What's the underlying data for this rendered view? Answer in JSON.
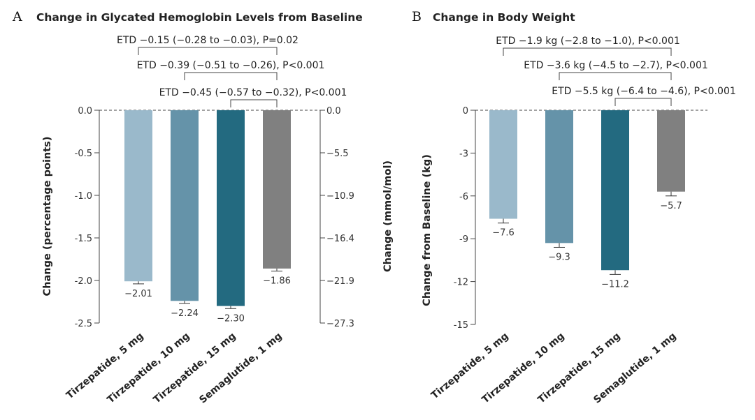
{
  "chart_data": [
    {
      "type": "bar",
      "panel_letter": "A",
      "title": "Change in Glycated Hemoglobin Levels from Baseline",
      "ylabel": "Change (percentage points)",
      "ylabel_right": "Change (mmol/mol)",
      "ylim": [
        -2.5,
        0.0
      ],
      "yticks": [
        "0.0",
        "-0.5",
        "-1.0",
        "-1.5",
        "-2.0",
        "-2.5"
      ],
      "yticks_right": [
        "0.0",
        "−5.5",
        "−10.9",
        "−16.4",
        "−21.9",
        "−27.3"
      ],
      "categories": [
        "Tirzepatide, 5 mg",
        "Tirzepatide, 10 mg",
        "Tirzepatide, 15 mg",
        "Semaglutide, 1 mg"
      ],
      "values": [
        -2.01,
        -2.24,
        -2.3,
        -1.86
      ],
      "errors": [
        0.03,
        0.03,
        0.03,
        0.03
      ],
      "value_labels": [
        "−2.01",
        "−2.24",
        "−2.30",
        "−1.86"
      ],
      "colors": [
        "#9ab9cb",
        "#6593a9",
        "#236a80",
        "#808080"
      ],
      "comparisons": [
        {
          "label": "ETD −0.15 (−0.28 to −0.03), P=0.02",
          "from": 0,
          "to": 3
        },
        {
          "label": "ETD −0.39 (−0.51 to −0.26), P<0.001",
          "from": 1,
          "to": 3
        },
        {
          "label": "ETD −0.45 (−0.57 to −0.32), P<0.001",
          "from": 2,
          "to": 3
        }
      ],
      "grid": false
    },
    {
      "type": "bar",
      "panel_letter": "B",
      "title": "Change in Body Weight",
      "ylabel": "Change from Baseline (kg)",
      "ylim": [
        -15,
        0
      ],
      "yticks": [
        "0",
        "-3",
        "-6",
        "-9",
        "-12",
        "-15"
      ],
      "categories": [
        "Tirzepatide, 5 mg",
        "Tirzepatide, 10 mg",
        "Tirzepatide, 15 mg",
        "Semaglutide, 1 mg"
      ],
      "values": [
        -7.6,
        -9.3,
        -11.2,
        -5.7
      ],
      "errors": [
        0.3,
        0.3,
        0.3,
        0.3
      ],
      "value_labels": [
        "−7.6",
        "−9.3",
        "−11.2",
        "−5.7"
      ],
      "colors": [
        "#9ab9cb",
        "#6593a9",
        "#236a80",
        "#808080"
      ],
      "comparisons": [
        {
          "label": "ETD −1.9 kg (−2.8 to −1.0), P<0.001",
          "from": 0,
          "to": 3
        },
        {
          "label": "ETD −3.6 kg (−4.5 to −2.7), P<0.001",
          "from": 1,
          "to": 3
        },
        {
          "label": "ETD −5.5 kg (−6.4 to −4.6), P<0.001",
          "from": 2,
          "to": 3
        }
      ],
      "grid": false
    }
  ]
}
